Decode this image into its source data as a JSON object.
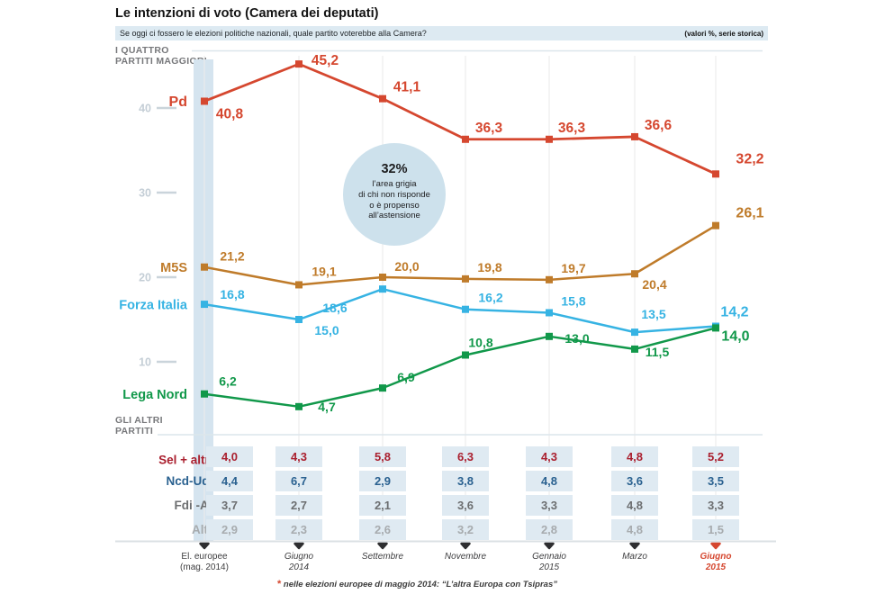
{
  "header": {
    "title": "Le intenzioni di voto (Camera dei deputati)",
    "subtitle": "Se oggi ci fossero le elezioni politiche nazionali, quale partito voterebbe alla Camera?",
    "note": "(valori %, serie storica)"
  },
  "sections": {
    "major_line1": "I QUATTRO",
    "major_line2": "PARTITI MAGGIORI",
    "others_line1": "GLI ALTRI",
    "others_line2": "PARTITI"
  },
  "chart_data": {
    "type": "line",
    "categories": [
      "El. europee (mag. 2014)",
      "Giugno 2014",
      "Settembre",
      "Novembre",
      "Gennaio 2015",
      "Marzo",
      "Giugno 2015"
    ],
    "ylim": [
      0,
      47
    ],
    "yticks": [
      10,
      20,
      30,
      40
    ],
    "grid": "vertical",
    "series": [
      {
        "name": "Pd",
        "color": "#d5472f",
        "values": [
          40.8,
          45.2,
          41.1,
          36.3,
          36.3,
          36.6,
          32.2
        ]
      },
      {
        "name": "M5S",
        "color": "#bf7b2a",
        "values": [
          21.2,
          19.1,
          20.0,
          19.8,
          19.7,
          20.4,
          26.1
        ]
      },
      {
        "name": "Forza Italia",
        "color": "#36b3e3",
        "values": [
          16.8,
          15.0,
          18.6,
          16.2,
          15.8,
          13.5,
          14.2
        ]
      },
      {
        "name": "Lega Nord",
        "color": "#11984a",
        "values": [
          6.2,
          4.7,
          6.9,
          10.8,
          13.0,
          11.5,
          14.0
        ]
      }
    ],
    "annotation": {
      "headline": "32%",
      "lines": [
        "l’area grigia",
        "di chi non risponde",
        "o è propenso",
        "all’astensione"
      ]
    }
  },
  "others_table": {
    "rows": [
      {
        "label": "Sel + altri",
        "asterisk": "*",
        "color": "#aa1f2e",
        "values": [
          4.0,
          4.3,
          5.8,
          6.3,
          4.3,
          4.8,
          5.2
        ]
      },
      {
        "label": "Ncd-Udc",
        "asterisk": "",
        "color": "#2a6190",
        "values": [
          4.4,
          6.7,
          2.9,
          3.8,
          4.8,
          3.6,
          3.5
        ]
      },
      {
        "label": "Fdi -An",
        "asterisk": "",
        "color": "#6c6e70",
        "values": [
          3.7,
          2.7,
          2.1,
          3.6,
          3.3,
          4.8,
          3.3
        ]
      },
      {
        "label": "Altri",
        "asterisk": "",
        "color": "#a7abae",
        "values": [
          2.9,
          2.3,
          2.6,
          3.2,
          2.8,
          4.8,
          1.5
        ]
      }
    ]
  },
  "xaxis": {
    "labels": [
      [
        "El. europee",
        "(mag. 2014)"
      ],
      [
        "Giugno",
        "2014"
      ],
      [
        "Settembre"
      ],
      [
        "Novembre"
      ],
      [
        "Gennaio",
        "2015"
      ],
      [
        "Marzo"
      ],
      [
        "Giugno",
        "2015"
      ]
    ]
  },
  "footnote": {
    "asterisk": "*",
    "text": " nelle elezioni europee di maggio 2014: “L’altra Europa con Tsipras”"
  },
  "colors": {
    "band": "#d5e4ef",
    "cell_bg": "#dfeaf2",
    "subtitle_band": "#ddeaf2",
    "circle_fill": "#cde1ec",
    "tick": "#c4ced6",
    "gridline": "#ececec",
    "separator": "#dce6ec",
    "axis_marker": "#2e2e30",
    "axis_marker_last": "#d5472f"
  }
}
